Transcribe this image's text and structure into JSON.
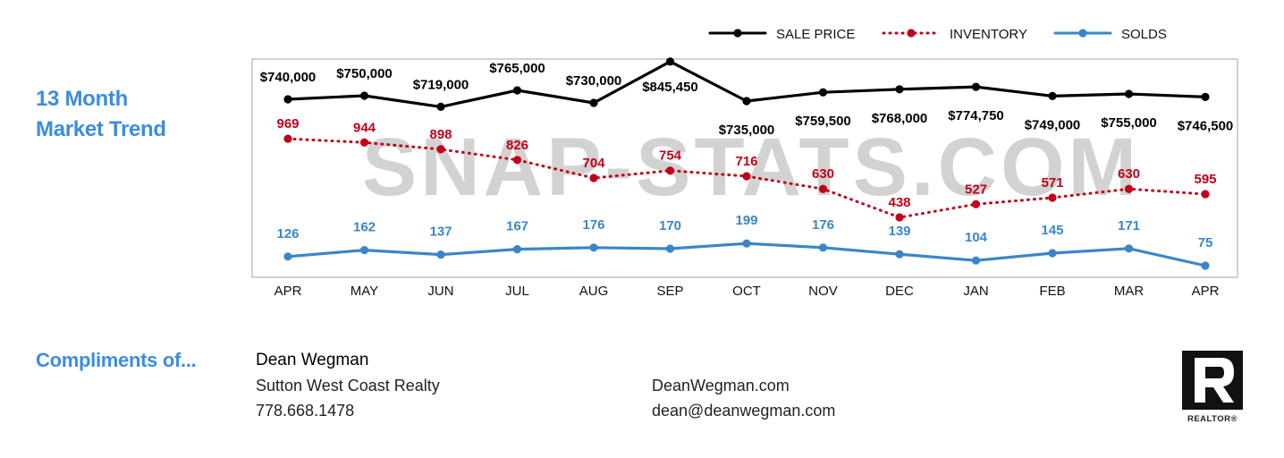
{
  "section_title_line1": "13 Month",
  "section_title_line2": "Market Trend",
  "watermark": "SNAP-STATS.COM",
  "compliments_label": "Compliments of...",
  "agent": {
    "name": "Dean Wegman",
    "company": "Sutton West Coast Realty",
    "phone": "778.668.1478",
    "website": "DeanWegman.com",
    "email": "dean@deanwegman.com"
  },
  "realtor_logo_text": "REALTOR®",
  "colors": {
    "sale_price": "#000000",
    "inventory": "#c00018",
    "solds": "#3a86c8",
    "title_blue": "#3c8dde"
  },
  "chart_data": {
    "type": "line",
    "categories": [
      "APR",
      "MAY",
      "JUN",
      "JUL",
      "AUG",
      "SEP",
      "OCT",
      "NOV",
      "DEC",
      "JAN",
      "FEB",
      "MAR",
      "APR"
    ],
    "legend_position": "top-right",
    "grid": false,
    "series": [
      {
        "name": "SALE PRICE",
        "style": "solid",
        "values": [
          740000,
          750000,
          719000,
          765000,
          730000,
          845450,
          735000,
          759500,
          768000,
          774750,
          749000,
          755000,
          746500
        ],
        "labels": [
          "$740,000",
          "$750,000",
          "$719,000",
          "$765,000",
          "$730,000",
          "$845,450",
          "$735,000",
          "$759,500",
          "$768,000",
          "$774,750",
          "$749,000",
          "$755,000",
          "$746,500"
        ]
      },
      {
        "name": "INVENTORY",
        "style": "dotted",
        "values": [
          969,
          944,
          898,
          826,
          704,
          754,
          716,
          630,
          438,
          527,
          571,
          630,
          595
        ],
        "labels": [
          "969",
          "944",
          "898",
          "826",
          "704",
          "754",
          "716",
          "630",
          "438",
          "527",
          "571",
          "630",
          "595"
        ]
      },
      {
        "name": "SOLDS",
        "style": "solid",
        "values": [
          126,
          162,
          137,
          167,
          176,
          170,
          199,
          176,
          139,
          104,
          145,
          171,
          75
        ],
        "labels": [
          "126",
          "162",
          "137",
          "167",
          "176",
          "170",
          "199",
          "176",
          "139",
          "104",
          "145",
          "171",
          "75"
        ]
      }
    ]
  }
}
